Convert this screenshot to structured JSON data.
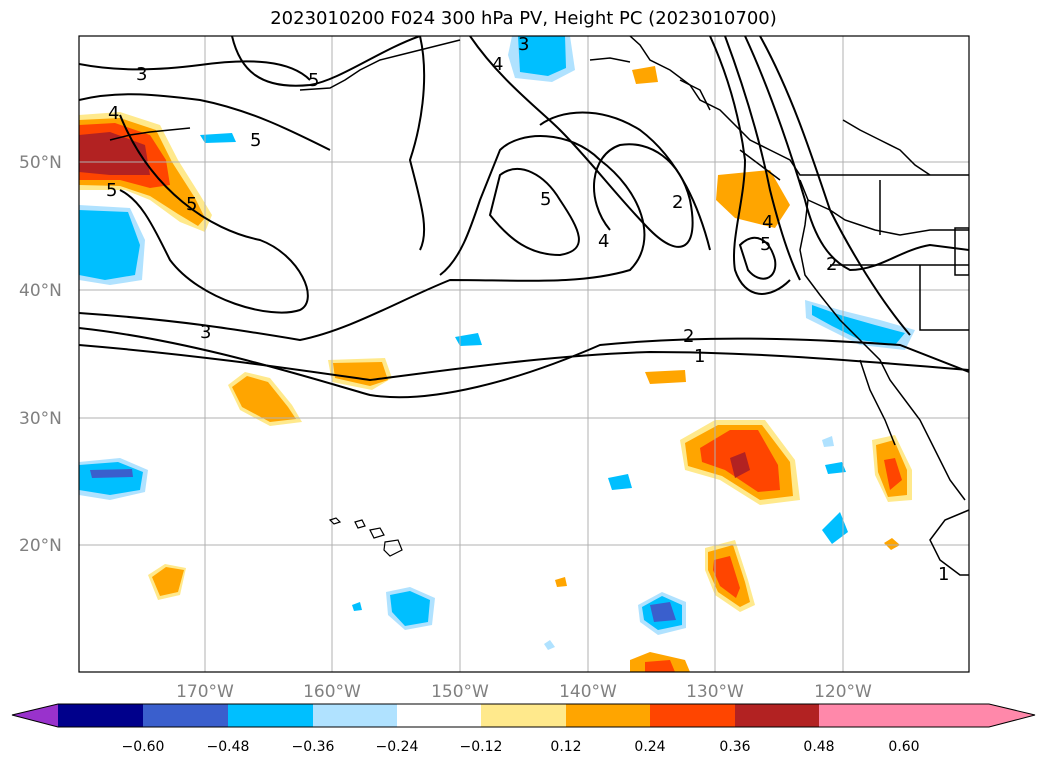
{
  "title": "2023010200 F024 300 hPa PV, Height PC (2023010700)",
  "lat_labels": [
    "50°N",
    "40°N",
    "30°N",
    "20°N"
  ],
  "lon_labels": [
    "170°W",
    "160°W",
    "150°W",
    "140°W",
    "130°W",
    "120°W"
  ],
  "colorbar": {
    "ticks": [
      "−0.60",
      "−0.48",
      "−0.36",
      "−0.24",
      "−0.12",
      "0.12",
      "0.24",
      "0.36",
      "0.48",
      "0.60"
    ],
    "colors": [
      "#9932cc",
      "#00008b",
      "#3a5fcd",
      "#00bfff",
      "#b0e2ff",
      "#ffffff",
      "#ffe98c",
      "#ffa500",
      "#ff4500",
      "#b22222",
      "#ff88aa"
    ]
  },
  "contour_labels": [
    "3",
    "4",
    "5",
    "5",
    "5",
    "5",
    "3",
    "4",
    "5",
    "4",
    "2",
    "4",
    "5",
    "2",
    "3",
    "2",
    "1",
    "1"
  ],
  "colors": {
    "gridline": "#b0b0b0",
    "contour": "#000000",
    "coast": "#000000"
  }
}
